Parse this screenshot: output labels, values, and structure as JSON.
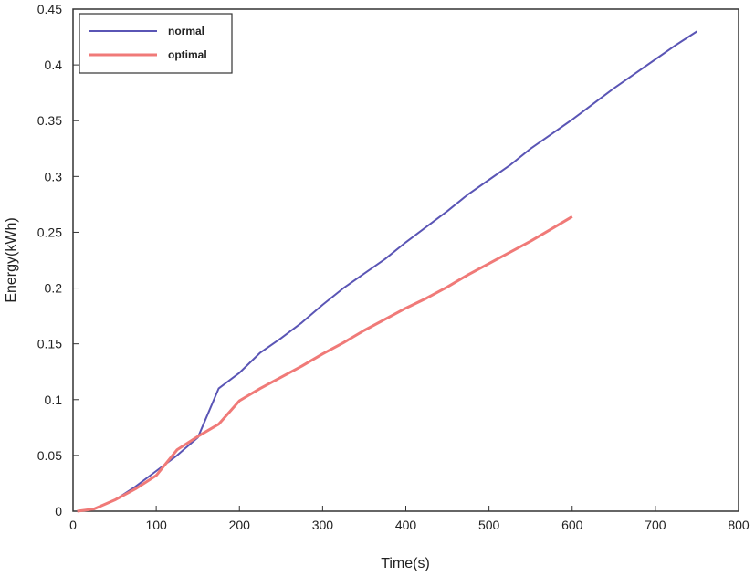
{
  "chart_data": {
    "type": "line",
    "title": "",
    "xlabel": "Time(s)",
    "ylabel": "Energy(kWh)",
    "xlim": [
      0,
      800
    ],
    "ylim": [
      0,
      0.45
    ],
    "x_ticks": [
      0,
      100,
      200,
      300,
      400,
      500,
      600,
      700,
      800
    ],
    "y_ticks": [
      0,
      0.05,
      0.1,
      0.15,
      0.2,
      0.25,
      0.3,
      0.35,
      0.4,
      0.45
    ],
    "x_tick_labels": [
      "0",
      "100",
      "200",
      "300",
      "400",
      "500",
      "600",
      "700",
      "800"
    ],
    "y_tick_labels": [
      "0",
      "0.05",
      "0.1",
      "0.15",
      "0.2",
      "0.25",
      "0.3",
      "0.35",
      "0.4",
      "0.45"
    ],
    "grid": false,
    "legend_position": "top-left",
    "series": [
      {
        "name": "normal",
        "color": "#5a55b5",
        "points": [
          [
            5,
            0.0
          ],
          [
            25,
            0.002
          ],
          [
            50,
            0.01
          ],
          [
            75,
            0.022
          ],
          [
            100,
            0.036
          ],
          [
            125,
            0.05
          ],
          [
            150,
            0.066
          ],
          [
            175,
            0.11
          ],
          [
            200,
            0.124
          ],
          [
            225,
            0.142
          ],
          [
            250,
            0.155
          ],
          [
            275,
            0.169
          ],
          [
            300,
            0.185
          ],
          [
            325,
            0.2
          ],
          [
            350,
            0.213
          ],
          [
            375,
            0.226
          ],
          [
            400,
            0.241
          ],
          [
            425,
            0.255
          ],
          [
            450,
            0.269
          ],
          [
            475,
            0.284
          ],
          [
            500,
            0.297
          ],
          [
            525,
            0.31
          ],
          [
            550,
            0.325
          ],
          [
            575,
            0.338
          ],
          [
            600,
            0.351
          ],
          [
            625,
            0.365
          ],
          [
            650,
            0.379
          ],
          [
            675,
            0.392
          ],
          [
            700,
            0.405
          ],
          [
            725,
            0.418
          ],
          [
            750,
            0.43
          ]
        ]
      },
      {
        "name": "optimal",
        "color": "#f07a78",
        "points": [
          [
            5,
            0.0
          ],
          [
            25,
            0.002
          ],
          [
            50,
            0.01
          ],
          [
            75,
            0.02
          ],
          [
            100,
            0.032
          ],
          [
            125,
            0.055
          ],
          [
            150,
            0.067
          ],
          [
            175,
            0.078
          ],
          [
            200,
            0.099
          ],
          [
            225,
            0.11
          ],
          [
            250,
            0.12
          ],
          [
            275,
            0.13
          ],
          [
            300,
            0.141
          ],
          [
            325,
            0.151
          ],
          [
            350,
            0.162
          ],
          [
            375,
            0.172
          ],
          [
            400,
            0.182
          ],
          [
            425,
            0.191
          ],
          [
            450,
            0.201
          ],
          [
            475,
            0.212
          ],
          [
            500,
            0.222
          ],
          [
            525,
            0.232
          ],
          [
            550,
            0.242
          ],
          [
            575,
            0.253
          ],
          [
            600,
            0.264
          ]
        ]
      }
    ]
  }
}
